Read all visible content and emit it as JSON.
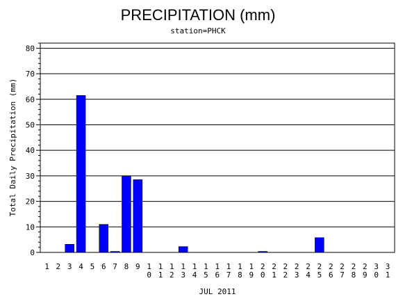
{
  "chart_data": {
    "type": "bar",
    "title": "PRECIPITATION (mm)",
    "subtitle": "station=PHCK",
    "xlabel": "JUL 2011",
    "ylabel": "Total Daily Precipitation (mm)",
    "ylim": [
      0,
      82
    ],
    "yticks": [
      0,
      10,
      20,
      30,
      40,
      50,
      60,
      70,
      80
    ],
    "grid": true,
    "bar_color": "#0000ff",
    "categories": [
      "1",
      "2",
      "3",
      "4",
      "5",
      "6",
      "7",
      "8",
      "9",
      "10",
      "11",
      "12",
      "13",
      "14",
      "15",
      "16",
      "17",
      "18",
      "19",
      "20",
      "21",
      "22",
      "23",
      "24",
      "25",
      "26",
      "27",
      "28",
      "29",
      "30",
      "31"
    ],
    "values": [
      0,
      0,
      3.2,
      61.5,
      0,
      11.0,
      0.4,
      30.0,
      28.5,
      0,
      0,
      0,
      2.3,
      0,
      0,
      0,
      0,
      0,
      0,
      0.4,
      0,
      0,
      0,
      0,
      5.8,
      0,
      0,
      0,
      0,
      0,
      0
    ]
  }
}
